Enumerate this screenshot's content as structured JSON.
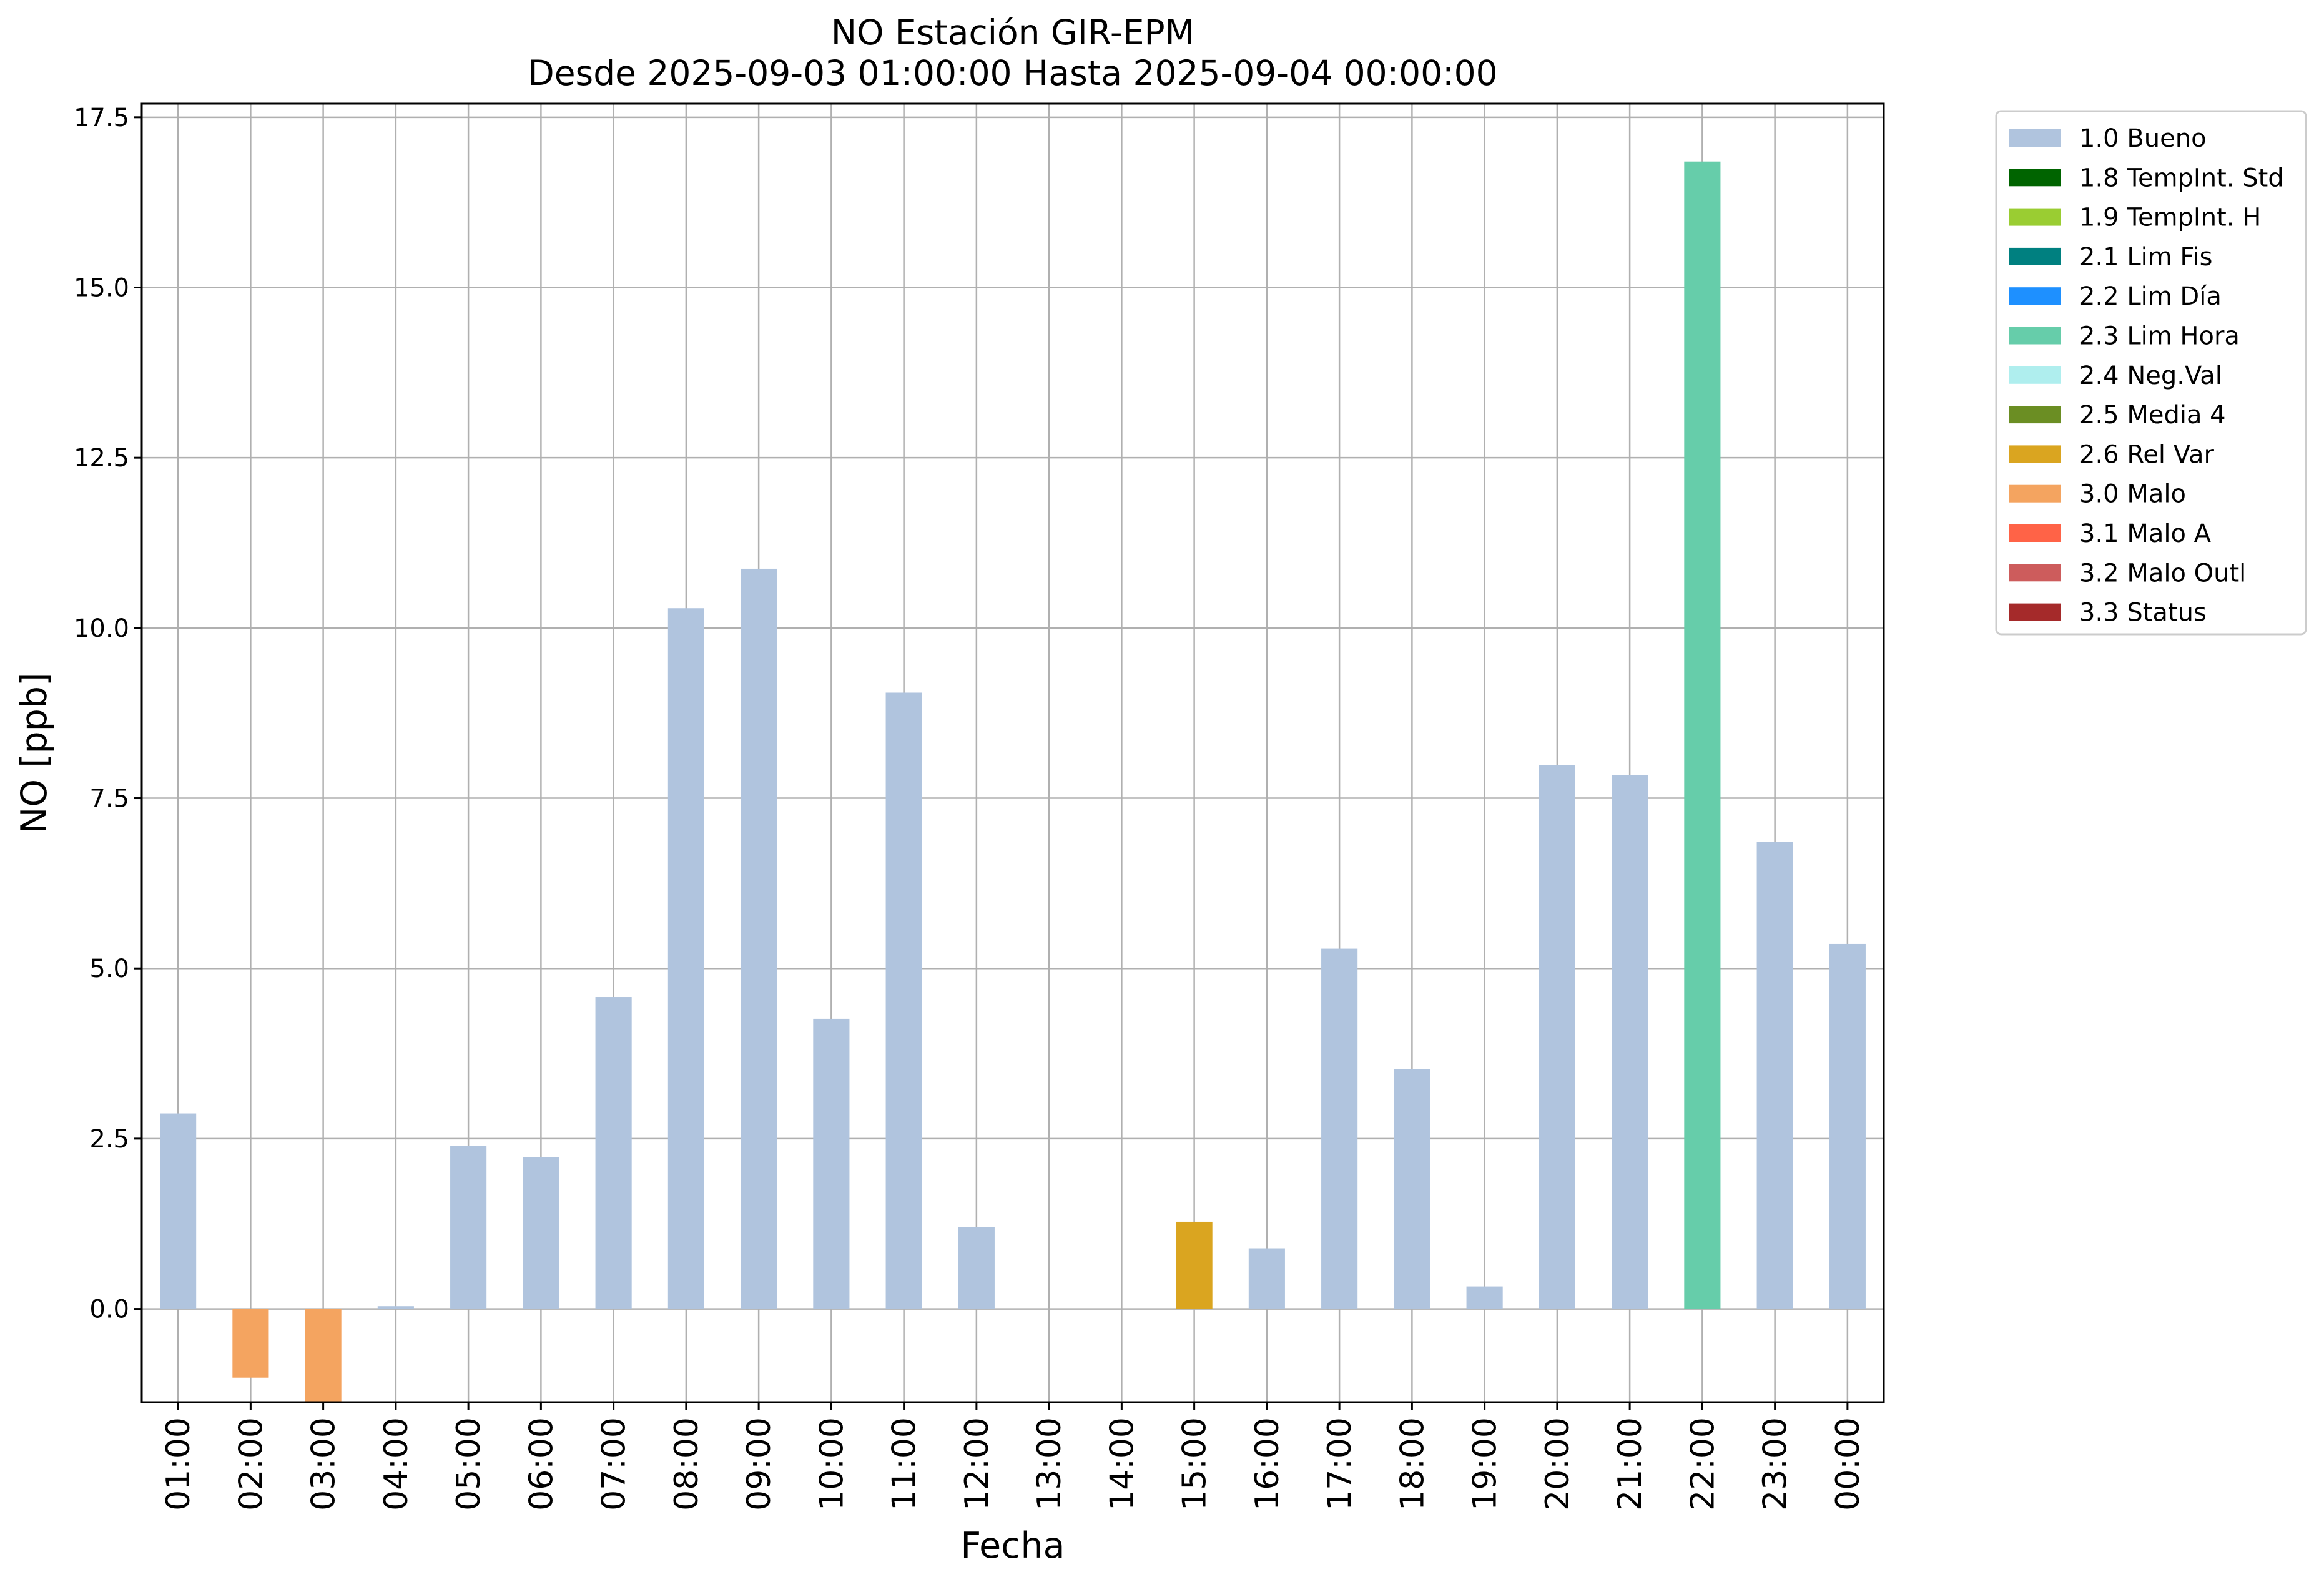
{
  "chart_data": {
    "type": "bar",
    "title": [
      "NO Estación GIR-EPM",
      "Desde 2025-09-03 01:00:00 Hasta 2025-09-04 00:00:00"
    ],
    "xlabel": "Fecha",
    "ylabel": "NO [ppb]",
    "ylim": [
      -1.37,
      17.7
    ],
    "yticks": [
      0.0,
      2.5,
      5.0,
      7.5,
      10.0,
      12.5,
      15.0,
      17.5
    ],
    "ytick_labels": [
      "0.0",
      "2.5",
      "5.0",
      "7.5",
      "10.0",
      "12.5",
      "15.0",
      "17.5"
    ],
    "grid": true,
    "legend_position": "outside-top-right",
    "categories": [
      "01:00",
      "02:00",
      "03:00",
      "04:00",
      "05:00",
      "06:00",
      "07:00",
      "08:00",
      "09:00",
      "10:00",
      "11:00",
      "12:00",
      "13:00",
      "14:00",
      "15:00",
      "16:00",
      "17:00",
      "18:00",
      "19:00",
      "20:00",
      "21:00",
      "22:00",
      "23:00",
      "00:00"
    ],
    "values": [
      2.87,
      -1.01,
      -1.37,
      0.04,
      2.39,
      2.23,
      4.58,
      10.29,
      10.87,
      4.26,
      9.05,
      1.2,
      null,
      null,
      1.28,
      0.89,
      5.29,
      3.52,
      0.33,
      7.99,
      7.84,
      16.85,
      6.86,
      5.36
    ],
    "flags": [
      "1.0 Bueno",
      "3.0 Malo",
      "3.0 Malo",
      "1.0 Bueno",
      "1.0 Bueno",
      "1.0 Bueno",
      "1.0 Bueno",
      "1.0 Bueno",
      "1.0 Bueno",
      "1.0 Bueno",
      "1.0 Bueno",
      "1.0 Bueno",
      null,
      null,
      "2.6 Rel Var",
      "1.0 Bueno",
      "1.0 Bueno",
      "1.0 Bueno",
      "1.0 Bueno",
      "1.0 Bueno",
      "1.0 Bueno",
      "2.3 Lim Hora",
      "1.0 Bueno",
      "1.0 Bueno"
    ],
    "legend": [
      {
        "label": "1.0 Bueno",
        "color": "#b0c4de"
      },
      {
        "label": "1.8 TempInt. Std",
        "color": "#006400"
      },
      {
        "label": "1.9 TempInt. H",
        "color": "#9acd32"
      },
      {
        "label": "2.1 Lim Fis",
        "color": "#008080"
      },
      {
        "label": "2.2 Lim Día",
        "color": "#1e90ff"
      },
      {
        "label": "2.3 Lim Hora",
        "color": "#66cdaa"
      },
      {
        "label": "2.4 Neg.Val",
        "color": "#afeeee"
      },
      {
        "label": "2.5 Media 4",
        "color": "#6b8e23"
      },
      {
        "label": "2.6 Rel Var",
        "color": "#daa520"
      },
      {
        "label": "3.0 Malo",
        "color": "#f4a460"
      },
      {
        "label": "3.1 Malo A",
        "color": "#ff6347"
      },
      {
        "label": "3.2 Malo Outl",
        "color": "#cd5c5c"
      },
      {
        "label": "3.3 Status",
        "color": "#a52a2a"
      }
    ]
  }
}
